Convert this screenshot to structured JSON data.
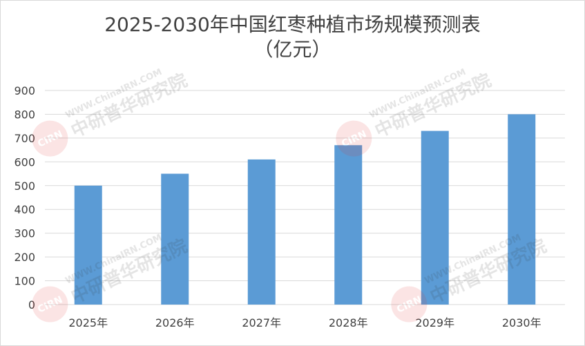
{
  "chart_data": {
    "type": "bar",
    "title": "2025-2030年中国红枣种植市场规模预测表",
    "subtitle": "（亿元）",
    "categories": [
      "2025年",
      "2026年",
      "2027年",
      "2028年",
      "2029年",
      "2030年"
    ],
    "series": [
      {
        "values": [
          500,
          550,
          610,
          670,
          730,
          800
        ]
      }
    ],
    "ylim": [
      0,
      900
    ],
    "yticks": [
      0,
      100,
      200,
      300,
      400,
      500,
      600,
      700,
      800,
      900
    ],
    "grid": true,
    "legend": "none",
    "colors": {
      "bar": "#5b9bd5",
      "grid": "#d9d9d9",
      "text": "#404040"
    }
  },
  "watermark": {
    "url": "WWW.ChinaIRN.COM",
    "name": "中研普华研究院",
    "badge": "CIRN"
  }
}
